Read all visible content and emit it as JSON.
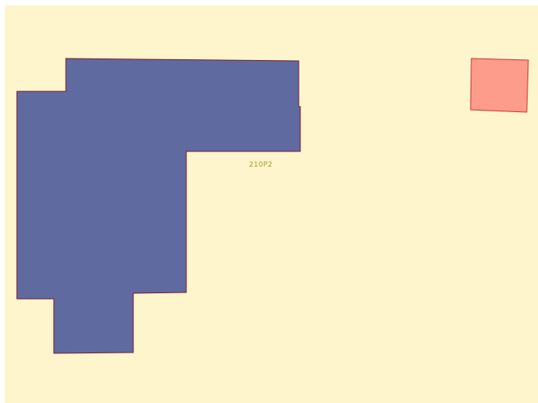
{
  "map": {
    "background_color": "#fef5cd",
    "border_color": "#ffffff",
    "parcel_label": "210P2",
    "parcel_label_color": "#b09a2c",
    "building_main": {
      "fill": "#5f6aa1",
      "stroke": "#7a1c2a"
    },
    "building_small": {
      "fill": "#fd9c8a",
      "stroke": "#c8343a"
    }
  }
}
